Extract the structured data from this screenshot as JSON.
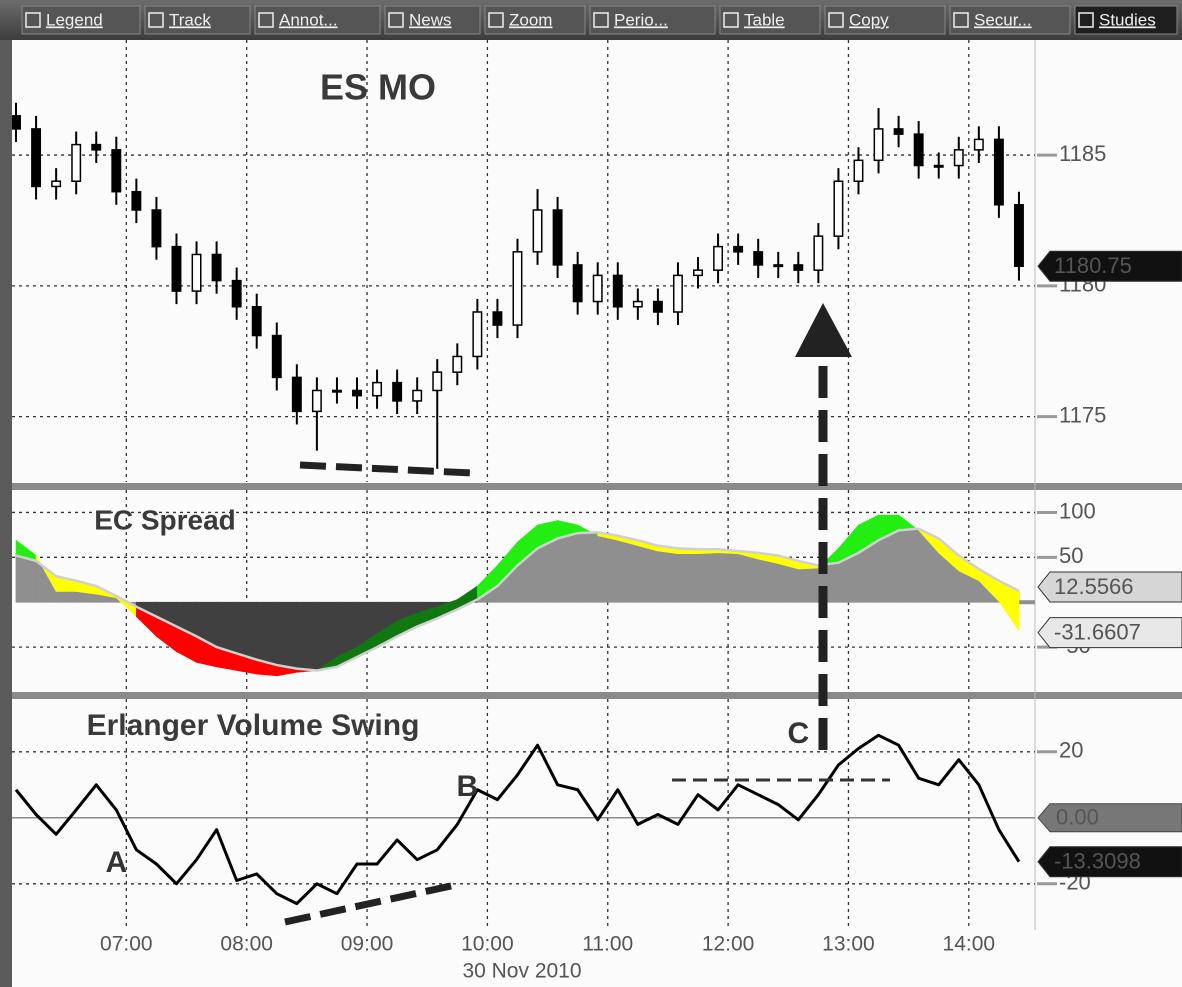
{
  "toolbar": [
    "Legend",
    "Track",
    "Annot...",
    "News",
    "Zoom",
    "Perio...",
    "Table",
    "Copy",
    "Secur...",
    "Studies"
  ],
  "time_axis": {
    "x": [
      "06:05",
      "06:15",
      "06:25",
      "06:35",
      "06:45",
      "06:55",
      "07:05",
      "07:15",
      "07:25",
      "07:35",
      "07:45",
      "07:55",
      "08:05",
      "08:15",
      "08:25",
      "08:35",
      "08:45",
      "08:55",
      "09:05",
      "09:15",
      "09:25",
      "09:35",
      "09:45",
      "09:55",
      "10:05",
      "10:15",
      "10:25",
      "10:35",
      "10:45",
      "10:55",
      "11:05",
      "11:15",
      "11:25",
      "11:35",
      "11:45",
      "11:55",
      "12:05",
      "12:15",
      "12:25",
      "12:35",
      "12:45",
      "12:55",
      "13:05",
      "13:15",
      "13:25",
      "13:35",
      "13:45",
      "13:55",
      "14:05",
      "14:15",
      "14:25"
    ],
    "xlim": [
      "06:03",
      "14:33"
    ],
    "xticks": [
      "07:00",
      "08:00",
      "09:00",
      "10:00",
      "11:00",
      "12:00",
      "13:00",
      "14:00"
    ],
    "date_label": "30 Nov 2010"
  },
  "chart_data": [
    {
      "type": "candlestick",
      "title": "ES MO",
      "open": [
        1186.5,
        1186,
        1183.8,
        1184,
        1185.4,
        1185.2,
        1183.6,
        1182.9,
        1181.5,
        1179.8,
        1181.2,
        1180.2,
        1179.2,
        1178.1,
        1176.5,
        1175.2,
        1176,
        1176,
        1175.8,
        1176.3,
        1175.6,
        1176,
        1176.7,
        1177.3,
        1179,
        1178.5,
        1181.3,
        1182.9,
        1180.8,
        1179.4,
        1180.4,
        1179.2,
        1179.4,
        1179,
        1180.4,
        1180.6,
        1181.5,
        1181.3,
        1180.8,
        1180.8,
        1180.6,
        1181.9,
        1184,
        1184.8,
        1186,
        1185.8,
        1184.6,
        1184.6,
        1185.2,
        1185.6,
        1183.1
      ],
      "high": [
        1187,
        1186.5,
        1184.5,
        1185.9,
        1185.9,
        1185.7,
        1184.1,
        1183.4,
        1182,
        1181.7,
        1181.7,
        1180.7,
        1179.7,
        1178.6,
        1177,
        1176.5,
        1176.5,
        1176.5,
        1176.8,
        1176.8,
        1176.5,
        1177.2,
        1177.8,
        1179.5,
        1179.5,
        1181.8,
        1183.7,
        1183.4,
        1181.3,
        1180.9,
        1180.9,
        1179.9,
        1179.9,
        1180.9,
        1181.1,
        1182,
        1182,
        1181.8,
        1181.3,
        1181.3,
        1182.4,
        1184.5,
        1185.3,
        1186.8,
        1186.5,
        1186.3,
        1185.1,
        1185.7,
        1186.1,
        1186.1,
        1183.6
      ],
      "low": [
        1185.5,
        1183.3,
        1183.3,
        1183.5,
        1184.7,
        1183.1,
        1182.4,
        1181,
        1179.3,
        1179.3,
        1179.7,
        1178.7,
        1177.6,
        1176,
        1174.7,
        1173.7,
        1175.5,
        1175.3,
        1175.3,
        1175.1,
        1175.1,
        1173,
        1176.2,
        1176.8,
        1178,
        1178,
        1180.8,
        1180.3,
        1178.9,
        1178.9,
        1178.7,
        1178.7,
        1178.5,
        1178.5,
        1179.9,
        1180.1,
        1180.8,
        1180.3,
        1180.3,
        1180.1,
        1180.1,
        1181.4,
        1183.5,
        1184.3,
        1185.3,
        1184.1,
        1184.1,
        1184.1,
        1184.7,
        1182.6,
        1180.2
      ],
      "close": [
        1186,
        1183.8,
        1184,
        1185.4,
        1185.2,
        1183.6,
        1182.9,
        1181.5,
        1179.8,
        1181.2,
        1180.2,
        1179.2,
        1178.1,
        1176.5,
        1175.2,
        1176,
        1176,
        1175.8,
        1176.3,
        1175.6,
        1176,
        1176.7,
        1177.3,
        1179,
        1178.5,
        1181.3,
        1182.9,
        1180.8,
        1179.4,
        1180.4,
        1179.2,
        1179.4,
        1179,
        1180.4,
        1180.6,
        1181.5,
        1181.3,
        1180.8,
        1180.8,
        1180.6,
        1181.9,
        1184,
        1184.8,
        1186,
        1185.8,
        1184.6,
        1184.6,
        1185.2,
        1185.6,
        1183.1,
        1180.75
      ],
      "up_color": "#ffffff",
      "down_color": "#000000",
      "ylim": [
        1172.5,
        1189.4
      ],
      "yticks": [
        1175,
        1180,
        1185
      ],
      "grid": true
    },
    {
      "type": "band",
      "title": "EC Spread",
      "series": [
        {
          "color": "#d0d0d0",
          "values": [
            52,
            46,
            29,
            24,
            18,
            7,
            -5,
            -16,
            -27,
            -38,
            -50,
            -57,
            -64,
            -70,
            -74,
            -76,
            -72,
            -61,
            -50,
            -38,
            -27,
            -18,
            -8,
            3,
            18,
            41,
            60,
            71,
            77,
            78,
            74,
            69,
            63,
            60,
            59,
            59,
            57,
            55,
            52,
            46,
            41,
            44,
            55,
            69,
            80,
            82,
            71,
            52,
            37,
            24,
            12.5566
          ]
        },
        {
          "color": "#000000",
          "values": [
            69,
            52,
            12,
            12,
            9,
            5,
            -16,
            -38,
            -55,
            -67,
            -72,
            -76,
            -80,
            -82,
            -78,
            -76,
            -61,
            -50,
            -35,
            -21,
            -12,
            -5,
            3,
            18,
            41,
            67,
            86,
            91,
            86,
            74,
            69,
            63,
            57,
            54,
            54,
            55,
            54,
            48,
            43,
            37,
            38,
            60,
            86,
            97,
            97,
            80,
            55,
            35,
            24,
            1,
            -31.6607
          ]
        }
      ],
      "area_colors": {
        "positive": "#8f8f8f",
        "negative": "#404040"
      },
      "band_colors": {
        "rising_positive": "#22ee11",
        "falling_positive": "#ffff00",
        "falling_negative": "#ff0000",
        "rising_negative": "#117711"
      },
      "ylim": [
        -100,
        125
      ],
      "yticks": [
        100,
        50,
        -50
      ],
      "grid": true
    },
    {
      "type": "line",
      "title": "Erlanger Volume Swing",
      "series": [
        {
          "color": "#000000",
          "values": [
            8.5,
            1,
            -5,
            2.4,
            10,
            2.4,
            -9.7,
            -14,
            -20,
            -12.7,
            -3.6,
            -19,
            -17,
            -23,
            -26,
            -20,
            -23,
            -14,
            -14,
            -6.7,
            -12.7,
            -9.7,
            -2,
            8.5,
            5.5,
            13,
            22,
            10,
            8.5,
            -0.6,
            8.5,
            -2,
            1,
            -2,
            7,
            2.4,
            10,
            7,
            4,
            -0.6,
            7,
            16,
            21,
            25,
            22,
            12,
            10,
            17.6,
            10,
            -3.6,
            -13.3098
          ]
        }
      ],
      "zero_label": {
        "value": 0,
        "label": "0.00"
      },
      "annotations": [
        {
          "text": "A",
          "x": "06:55",
          "y": -14
        },
        {
          "text": "B",
          "x": "09:50",
          "y": 9
        },
        {
          "text": "C",
          "x": "12:35",
          "y": 25
        }
      ],
      "ylim": [
        -34,
        36
      ],
      "yticks": [
        20,
        -20
      ],
      "grid": true
    }
  ]
}
